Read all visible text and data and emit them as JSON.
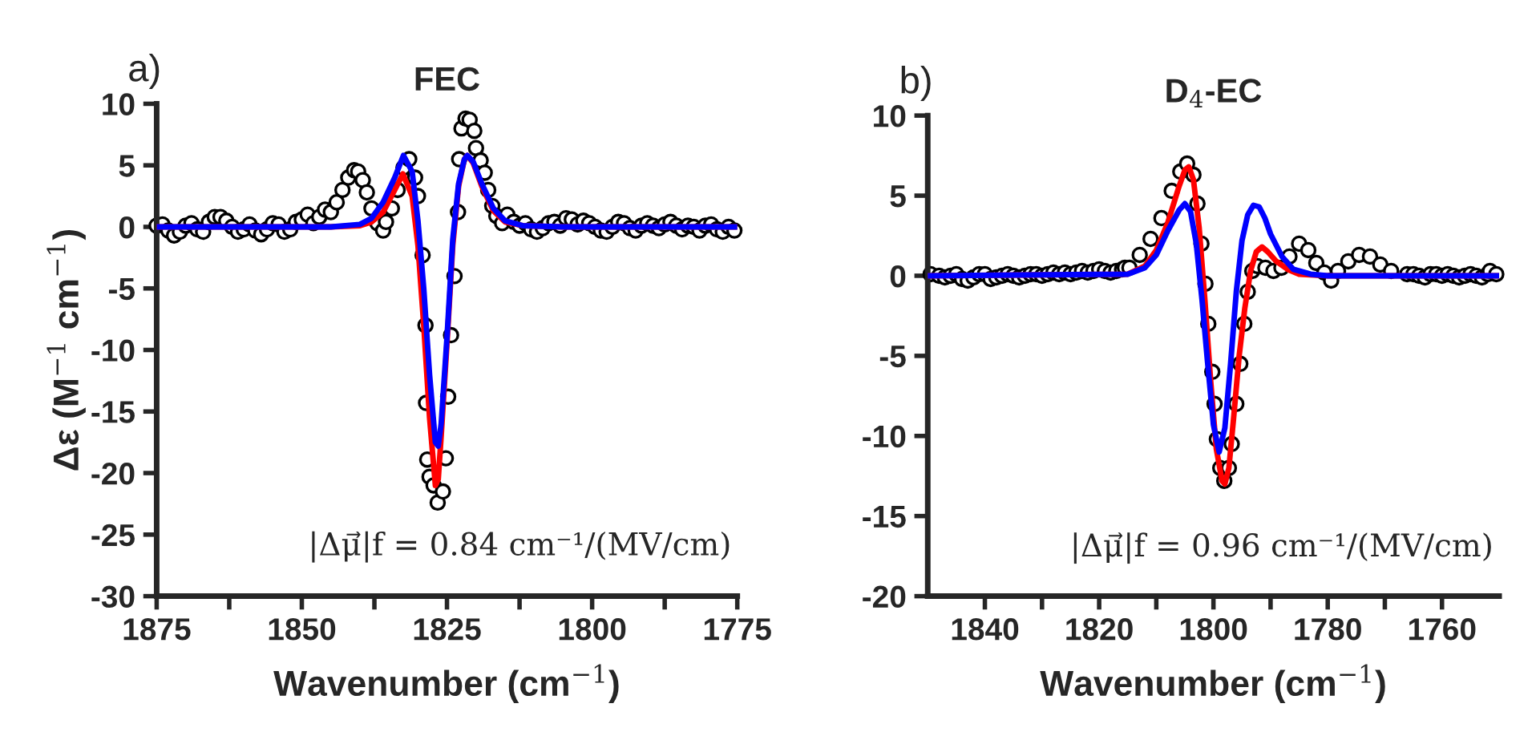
{
  "chart_data": [
    {
      "type": "scatter",
      "title": "FEC",
      "xlabel": "Wavenumber (cm$^{−1}$)",
      "ylabel": "Δε (M$^{−1}$ cm$^{−1}$)",
      "annotations": [
        "a)",
        "|Δμ⃗|f = 0.84 cm⁻¹/(MV/cm)"
      ],
      "xlim": [
        1875,
        1775
      ],
      "ylim": [
        -30,
        10
      ],
      "xticks": [
        1875,
        {
          "value": 1862.5,
          "label": null
        },
        1850,
        {
          "value": 1837.5,
          "label": null
        },
        1825,
        {
          "value": 1812.5,
          "label": null
        },
        1800,
        {
          "value": 1787.5,
          "label": null
        },
        1775
      ],
      "yticks": [
        -30,
        -25,
        -20,
        -15,
        -10,
        -5,
        0,
        5,
        10
      ],
      "grid": false,
      "legend": false,
      "series": [
        {
          "color": "#000000",
          "marker": "circle",
          "x": [
            1875,
            1874,
            1873,
            1872,
            1871,
            1870,
            1869,
            1868,
            1867,
            1866,
            1865,
            1864,
            1863,
            1862,
            1861,
            1860,
            1859,
            1858,
            1857,
            1856,
            1855,
            1854,
            1853,
            1852,
            1851,
            1850,
            1849,
            1848,
            1847,
            1846,
            1845,
            1844,
            1843,
            1842,
            1841,
            1840.3,
            1839.5,
            1838.8,
            1838,
            1837,
            1836,
            1835.5,
            1834.5,
            1833.5,
            1832.5,
            1831.5,
            1830.5,
            1830,
            1829.2,
            1828.7,
            1828.6,
            1828.4,
            1828.0,
            1827.3,
            1826.6,
            1825.7,
            1825.2,
            1824.8,
            1824.3,
            1823.7,
            1823.1,
            1822.9,
            1822.5,
            1821.8,
            1821.1,
            1820.3,
            1820,
            1819.2,
            1818.5,
            1817.9,
            1817.2,
            1816.5,
            1815.5,
            1814.6,
            1813.5,
            1812.5,
            1811.5,
            1810.5,
            1809.5,
            1808.5,
            1807.5,
            1806.5,
            1805.5,
            1804.5,
            1803.5,
            1802.5,
            1801.5,
            1800.5,
            1799.5,
            1798.5,
            1797.5,
            1796.5,
            1795.5,
            1794.5,
            1793.5,
            1792.5,
            1791.5,
            1790.5,
            1789.5,
            1788.5,
            1787.5,
            1786.5,
            1785.5,
            1784.5,
            1783.5,
            1782.5,
            1781.5,
            1780.5,
            1779.5,
            1778.5,
            1777.5,
            1776.5,
            1775.5
          ],
          "values": [
            0.1,
            0.2,
            -0.3,
            -0.7,
            -0.4,
            0.1,
            0.3,
            -0.2,
            -0.4,
            0.4,
            0.8,
            0.8,
            0.5,
            0,
            -0.4,
            -0.2,
            0.2,
            -0.3,
            -0.6,
            -0.2,
            0.3,
            0.2,
            -0.4,
            -0.2,
            0.4,
            0.6,
            1.0,
            0.3,
            0.8,
            1.4,
            1.2,
            2.0,
            3.0,
            4.0,
            4.6,
            4.5,
            3.8,
            2.8,
            1.5,
            0.3,
            -0.3,
            0.4,
            1.5,
            3.0,
            4.8,
            5.5,
            4.0,
            2.5,
            -2.3,
            -8,
            -14.3,
            -18.9,
            -20.3,
            -21,
            -22.4,
            -21.5,
            -18.8,
            -13.8,
            -8.8,
            -4,
            1.2,
            5.5,
            8,
            8.8,
            8.7,
            7.8,
            6.4,
            5.4,
            4.4,
            3,
            1.7,
            0.9,
            0.3,
            1.0,
            0.4,
            0.1,
            0.3,
            -0.2,
            -0.4,
            -0.1,
            0.3,
            0.4,
            0.1,
            0.7,
            0.6,
            0.2,
            0.5,
            0.3,
            0,
            -0.3,
            -0.4,
            0,
            0.4,
            0.3,
            -0.1,
            -0.3,
            0.1,
            0.3,
            0.1,
            -0.1,
            0.2,
            0.4,
            0.1,
            -0.2,
            0.1,
            0,
            -0.3,
            0.1,
            0.2,
            -0.2,
            -0.4,
            0,
            -0.3
          ]
        },
        {
          "type": "line",
          "color": "#ff0000",
          "x": [
            1875,
            1845,
            1840,
            1838,
            1836,
            1834,
            1832.6,
            1831,
            1830,
            1829,
            1828,
            1827,
            1826.5,
            1826,
            1825,
            1824,
            1823,
            1822,
            1821.5,
            1820.5,
            1819,
            1817,
            1815,
            1812,
            1805,
            1775
          ],
          "values": [
            0,
            0,
            0.1,
            0.4,
            1.2,
            3.0,
            4.3,
            2.5,
            -1.5,
            -8,
            -15.5,
            -21,
            -20.5,
            -17,
            -9.5,
            -1.5,
            3.3,
            5.5,
            5.8,
            5.2,
            3.3,
            1.3,
            0.4,
            0.1,
            0,
            0
          ]
        },
        {
          "type": "line",
          "color": "#0000ff",
          "x": [
            1875,
            1845,
            1840,
            1838,
            1836,
            1834,
            1832.5,
            1831,
            1830,
            1829,
            1828,
            1827,
            1826.5,
            1826,
            1825,
            1824,
            1823,
            1822,
            1821.5,
            1820.5,
            1819,
            1817,
            1815,
            1812,
            1805,
            1775
          ],
          "values": [
            0,
            0,
            0.2,
            0.7,
            2.0,
            4.0,
            5.8,
            4.5,
            0.5,
            -5,
            -12,
            -17.5,
            -17.8,
            -16,
            -9,
            -1,
            3.5,
            5.5,
            5.8,
            5.3,
            3.5,
            1.5,
            0.5,
            0.1,
            0,
            0
          ]
        }
      ]
    },
    {
      "type": "scatter",
      "title": "D$_{4}$-EC",
      "xlabel": "Wavenumber (cm$^{−1}$)",
      "annotations": [
        "b)",
        "|Δμ⃗|f = 0.96 cm⁻¹/(MV/cm)"
      ],
      "xlim": [
        1850,
        1750
      ],
      "ylim": [
        -20,
        10
      ],
      "xticks": [
        1840,
        {
          "value": 1830,
          "label": null
        },
        1820,
        {
          "value": 1810,
          "label": null
        },
        1800,
        {
          "value": 1790,
          "label": null
        },
        1780,
        {
          "value": 1770,
          "label": null
        },
        1760
      ],
      "yticks": [
        -20,
        -15,
        -10,
        -5,
        0,
        5,
        10
      ],
      "grid": false,
      "legend": false,
      "series": [
        {
          "color": "#000000",
          "marker": "circle",
          "x": [
            1849.5,
            1848,
            1847,
            1846,
            1845,
            1844,
            1843,
            1842,
            1841,
            1840,
            1839,
            1838,
            1837,
            1836,
            1835,
            1834,
            1833,
            1832,
            1831,
            1830,
            1829,
            1828,
            1827,
            1826,
            1825,
            1824,
            1823,
            1822,
            1821,
            1820,
            1819,
            1818,
            1817,
            1816,
            1815.5,
            1814.7,
            1812.9,
            1811,
            1809.1,
            1807.3,
            1805.8,
            1804.6,
            1803.5,
            1802.8,
            1802.1,
            1801.4,
            1800.9,
            1800.2,
            1799.8,
            1799.4,
            1798.8,
            1798.1,
            1797.3,
            1796.8,
            1796,
            1795.3,
            1794.6,
            1794,
            1793.2,
            1792.3,
            1790.9,
            1789.5,
            1788.1,
            1786.7,
            1785,
            1783.4,
            1782,
            1780.6,
            1779.4,
            1778.2,
            1776.4,
            1774.5,
            1772.6,
            1770.8,
            1768.9,
            1766.1,
            1765,
            1764,
            1763,
            1762,
            1761,
            1760,
            1759,
            1758,
            1757,
            1756,
            1755,
            1754,
            1753,
            1752,
            1751.6,
            1750.5
          ],
          "values": [
            0.1,
            0,
            -0.1,
            0,
            0.1,
            -0.2,
            -0.3,
            -0.1,
            0.1,
            0.1,
            -0.2,
            -0.1,
            0,
            0.1,
            0,
            -0.1,
            0,
            0.1,
            0.1,
            0,
            0.1,
            0.2,
            0.1,
            0.2,
            0.1,
            0.2,
            0.3,
            0.2,
            0.3,
            0.4,
            0.3,
            0.2,
            0.3,
            0.4,
            0.5,
            0.5,
            1.3,
            2.3,
            3.6,
            5.3,
            6.5,
            7.0,
            6.3,
            4.5,
            2,
            -0.5,
            -3,
            -6,
            -8,
            -10.2,
            -12,
            -12.8,
            -12,
            -10.5,
            -8,
            -5.5,
            -3,
            -1,
            0.3,
            0.6,
            0.5,
            0.3,
            0.5,
            1.2,
            2.0,
            1.6,
            0.8,
            0.2,
            -0.3,
            0.3,
            0.9,
            1.3,
            1.2,
            0.7,
            0.3,
            0.1,
            0.1,
            0,
            -0.1,
            0.1,
            0.1,
            0,
            0.1,
            0,
            -0.1,
            0,
            0.1,
            0,
            -0.1,
            0.1,
            0.3,
            0.1
          ]
        },
        {
          "type": "line",
          "color": "#ff0000",
          "x": [
            1850,
            1815,
            1812,
            1810,
            1808,
            1806,
            1805,
            1804.3,
            1803.5,
            1802.5,
            1801.5,
            1800.5,
            1799.5,
            1798.5,
            1798,
            1797.3,
            1796.5,
            1795.5,
            1794.5,
            1793.5,
            1792.5,
            1791.5,
            1790.5,
            1789,
            1787,
            1785,
            1780,
            1750
          ],
          "values": [
            0,
            0.1,
            0.6,
            1.6,
            3.3,
            5.6,
            6.6,
            6.8,
            6.0,
            3.0,
            -1.5,
            -6.5,
            -10.8,
            -12.8,
            -13,
            -12,
            -9,
            -5,
            -2,
            0.3,
            1.5,
            1.8,
            1.5,
            0.9,
            0.4,
            0.1,
            0,
            0
          ]
        },
        {
          "type": "line",
          "color": "#0000ff",
          "x": [
            1850,
            1815,
            1812,
            1810,
            1808,
            1806,
            1805,
            1804,
            1803,
            1802,
            1801,
            1800,
            1799,
            1798,
            1797,
            1796,
            1795,
            1794,
            1793,
            1792,
            1791,
            1790,
            1788,
            1786,
            1783,
            1780,
            1750
          ],
          "values": [
            0,
            0.1,
            0.5,
            1.3,
            2.8,
            4.1,
            4.5,
            4.0,
            2.0,
            -1.5,
            -5.5,
            -9.3,
            -11,
            -9.5,
            -5.5,
            -1.0,
            2.2,
            3.8,
            4.4,
            4.3,
            3.6,
            2.6,
            1.2,
            0.4,
            0.1,
            0,
            0
          ]
        }
      ]
    }
  ]
}
